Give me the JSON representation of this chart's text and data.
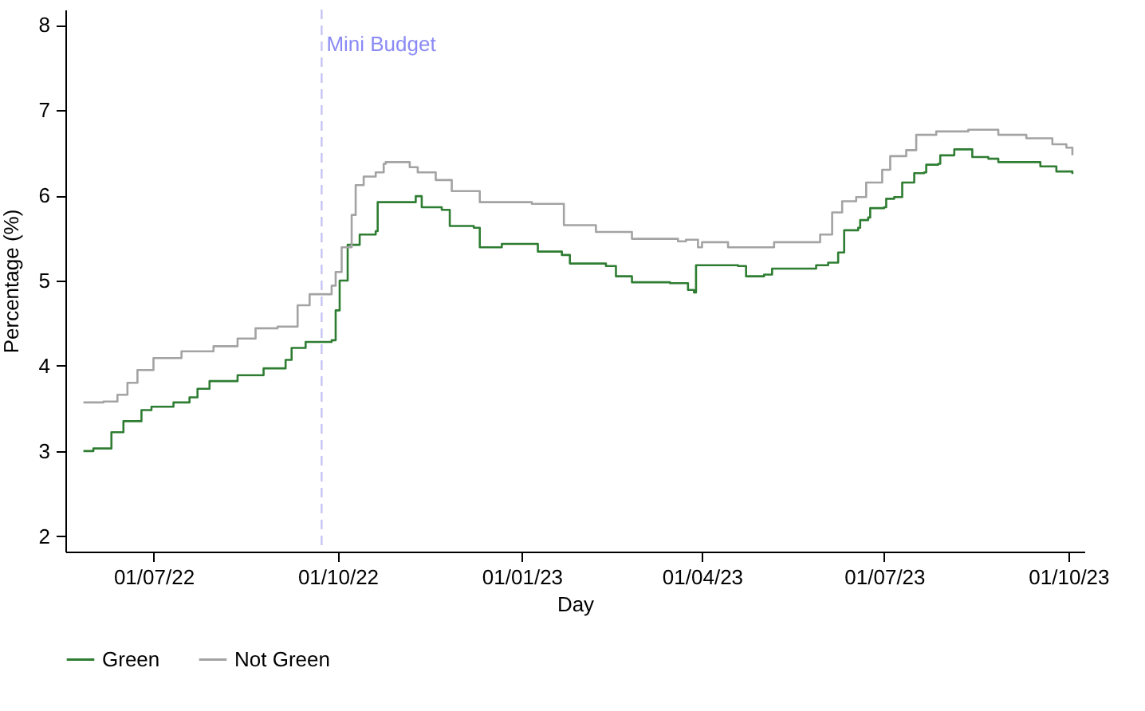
{
  "chart_data": {
    "type": "step",
    "xlabel": "Day",
    "ylabel": "Percentage (%)",
    "xlim": [
      "2022-05-18",
      "2023-10-09"
    ],
    "ylim": [
      1.82,
      8.18
    ],
    "xticks": [
      {
        "value": "2022-07-01",
        "label": "01/07/22"
      },
      {
        "value": "2022-10-01",
        "label": "01/10/22"
      },
      {
        "value": "2023-01-01",
        "label": "01/01/23"
      },
      {
        "value": "2023-04-01",
        "label": "01/04/23"
      },
      {
        "value": "2023-07-01",
        "label": "01/07/23"
      },
      {
        "value": "2023-10-01",
        "label": "01/10/23"
      }
    ],
    "yticks": [
      2,
      3,
      4,
      5,
      6,
      7,
      8
    ],
    "grid": false,
    "legend": "bottom",
    "line_style": "solid",
    "marker": "none",
    "ref_lines": [
      {
        "axis": "x",
        "value": "2022-09-23",
        "label": "Mini Budget",
        "color": "#c5c5f5",
        "line_style": "dashed"
      }
    ],
    "series": [
      {
        "name": "Green",
        "color": "#2e7d32",
        "x": [
          "2022-05-27",
          "2022-06-01",
          "2022-06-09",
          "2022-06-10",
          "2022-06-16",
          "2022-06-25",
          "2022-06-30",
          "2022-07-11",
          "2022-07-19",
          "2022-07-23",
          "2022-07-29",
          "2022-08-12",
          "2022-08-25",
          "2022-09-05",
          "2022-09-08",
          "2022-09-15",
          "2022-09-28",
          "2022-09-30",
          "2022-10-02",
          "2022-10-06",
          "2022-10-12",
          "2022-10-20",
          "2022-10-21",
          "2022-11-08",
          "2022-11-09",
          "2022-11-12",
          "2022-11-22",
          "2022-11-26",
          "2022-12-08",
          "2022-12-11",
          "2022-12-22",
          "2023-01-06",
          "2023-01-09",
          "2023-01-21",
          "2023-01-25",
          "2023-02-12",
          "2023-02-17",
          "2023-02-25",
          "2023-03-16",
          "2023-03-25",
          "2023-03-28",
          "2023-03-29",
          "2023-04-19",
          "2023-04-23",
          "2023-05-02",
          "2023-05-06",
          "2023-05-25",
          "2023-05-28",
          "2023-06-03",
          "2023-06-08",
          "2023-06-11",
          "2023-06-18",
          "2023-06-19",
          "2023-06-23",
          "2023-06-24",
          "2023-07-01",
          "2023-07-02",
          "2023-07-06",
          "2023-07-10",
          "2023-07-16",
          "2023-07-21",
          "2023-07-22",
          "2023-07-28",
          "2023-07-29",
          "2023-08-04",
          "2023-08-05",
          "2023-08-12",
          "2023-08-14",
          "2023-08-22",
          "2023-08-27",
          "2023-09-17",
          "2023-09-25",
          "2023-10-03"
        ],
        "values": [
          3.0,
          3.03,
          3.03,
          3.22,
          3.35,
          3.48,
          3.52,
          3.57,
          3.63,
          3.73,
          3.82,
          3.89,
          3.97,
          4.07,
          4.21,
          4.28,
          4.3,
          4.65,
          5.0,
          5.42,
          5.54,
          5.58,
          5.92,
          5.92,
          5.99,
          5.86,
          5.83,
          5.64,
          5.62,
          5.39,
          5.43,
          5.43,
          5.34,
          5.3,
          5.2,
          5.17,
          5.05,
          4.98,
          4.97,
          4.89,
          4.86,
          5.18,
          5.17,
          5.05,
          5.07,
          5.14,
          5.14,
          5.18,
          5.21,
          5.33,
          5.59,
          5.62,
          5.71,
          5.74,
          5.85,
          5.86,
          5.96,
          5.98,
          6.15,
          6.26,
          6.27,
          6.36,
          6.37,
          6.47,
          6.47,
          6.54,
          6.54,
          6.45,
          6.43,
          6.39,
          6.34,
          6.28,
          6.25
        ]
      },
      {
        "name": "Not Green",
        "color": "#a3a3a3",
        "x": [
          "2022-05-27",
          "2022-06-06",
          "2022-06-13",
          "2022-06-18",
          "2022-06-23",
          "2022-07-01",
          "2022-07-15",
          "2022-07-31",
          "2022-08-12",
          "2022-08-21",
          "2022-09-01",
          "2022-09-11",
          "2022-09-17",
          "2022-09-28",
          "2022-09-30",
          "2022-10-03",
          "2022-10-08",
          "2022-10-10",
          "2022-10-14",
          "2022-10-20",
          "2022-10-24",
          "2022-10-25",
          "2022-11-06",
          "2022-11-10",
          "2022-11-19",
          "2022-11-27",
          "2022-12-11",
          "2022-12-25",
          "2023-01-06",
          "2023-01-22",
          "2023-02-07",
          "2023-02-25",
          "2023-03-20",
          "2023-03-24",
          "2023-03-30",
          "2023-04-01",
          "2023-04-14",
          "2023-05-07",
          "2023-05-30",
          "2023-06-05",
          "2023-06-10",
          "2023-06-17",
          "2023-06-22",
          "2023-06-30",
          "2023-07-04",
          "2023-07-12",
          "2023-07-17",
          "2023-07-27",
          "2023-08-12",
          "2023-08-27",
          "2023-09-10",
          "2023-09-23",
          "2023-09-30",
          "2023-10-03"
        ],
        "values": [
          3.57,
          3.58,
          3.66,
          3.8,
          3.95,
          4.09,
          4.17,
          4.23,
          4.32,
          4.44,
          4.46,
          4.71,
          4.84,
          4.94,
          5.1,
          5.39,
          5.77,
          6.12,
          6.22,
          6.27,
          6.37,
          6.39,
          6.33,
          6.27,
          6.18,
          6.05,
          5.92,
          5.92,
          5.9,
          5.65,
          5.57,
          5.49,
          5.46,
          5.48,
          5.39,
          5.45,
          5.39,
          5.45,
          5.54,
          5.8,
          5.93,
          5.98,
          6.15,
          6.3,
          6.46,
          6.53,
          6.71,
          6.75,
          6.77,
          6.71,
          6.67,
          6.6,
          6.56,
          6.47
        ]
      }
    ]
  }
}
